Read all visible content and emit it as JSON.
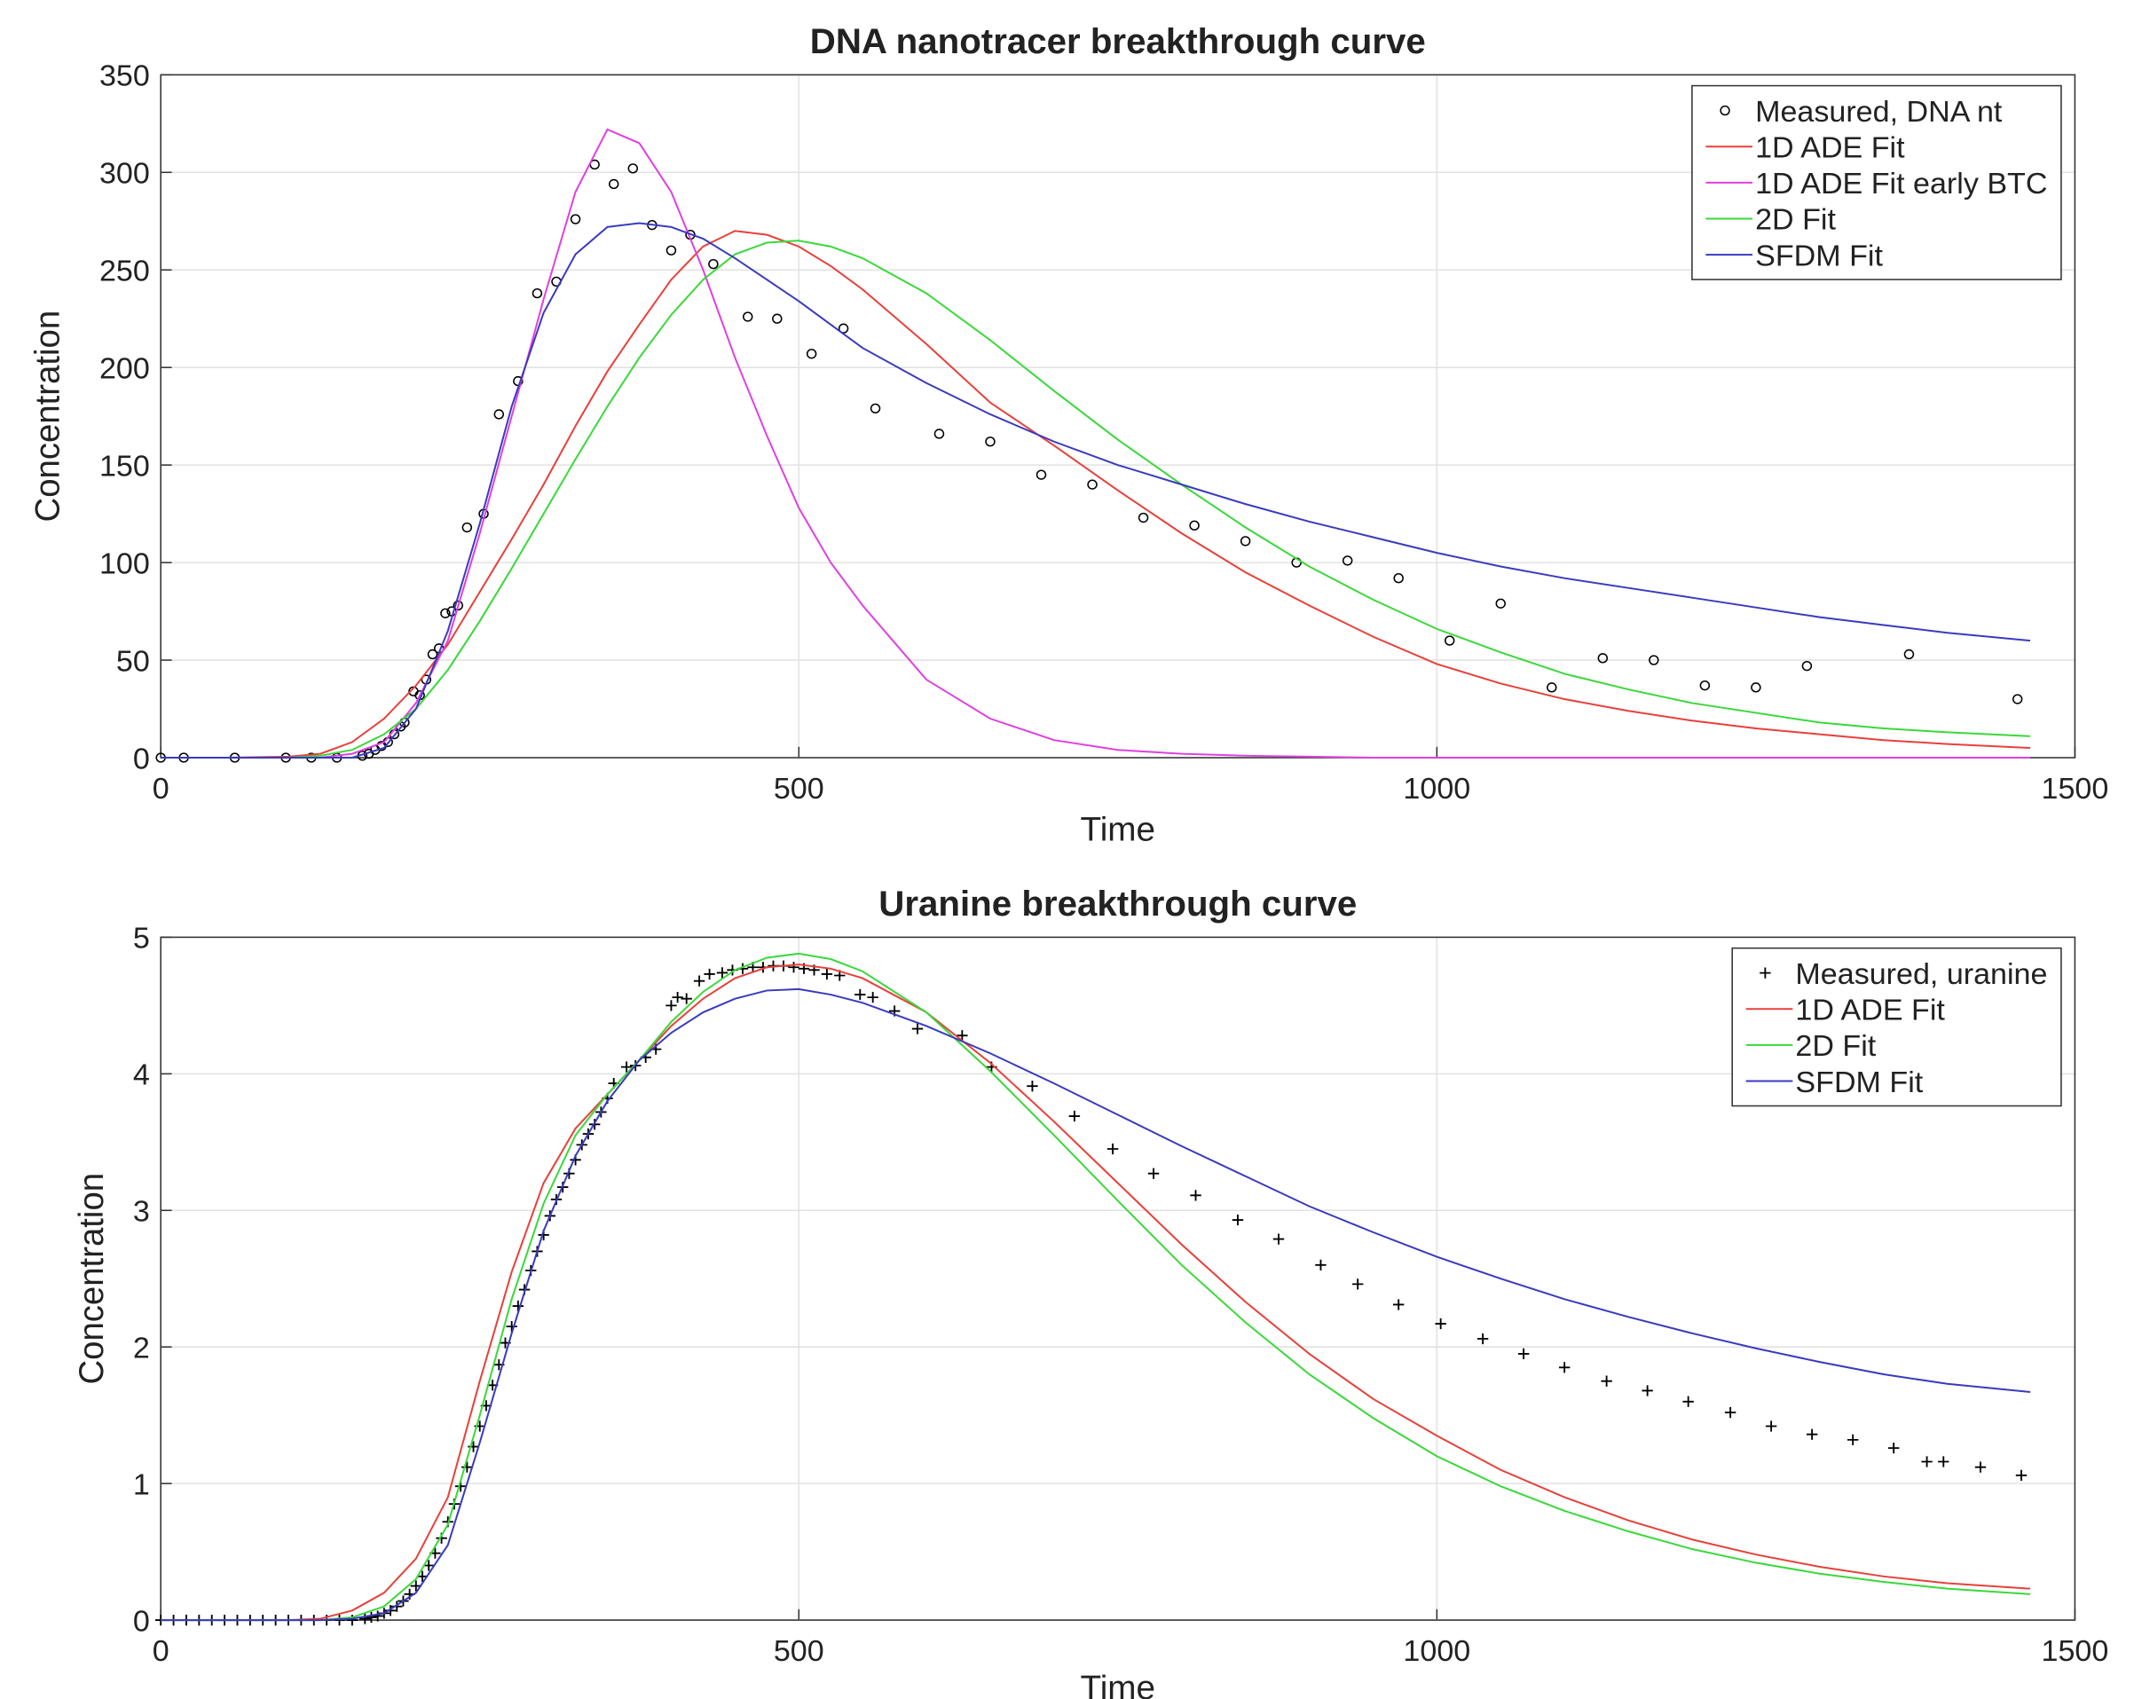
{
  "chart_data": [
    {
      "type": "line",
      "title": "DNA nanotracer breakthrough curve",
      "xlabel": "Time",
      "ylabel": "Concentration",
      "xlim": [
        0,
        1500
      ],
      "xticks": [
        0,
        500,
        1000,
        1500
      ],
      "ylim": [
        0,
        350
      ],
      "yticks": [
        0,
        50,
        100,
        150,
        200,
        250,
        300,
        350
      ],
      "grid": true,
      "legend": "upper right",
      "series": [
        {
          "name": "Measured, DNA nt",
          "mode": "markers",
          "marker": "circle",
          "color": "#000000",
          "x": [
            0,
            18,
            58,
            98,
            118,
            138,
            158,
            163,
            168,
            173,
            178,
            183,
            188,
            191,
            198,
            203,
            208,
            213,
            218,
            223,
            228,
            233,
            240,
            253,
            265,
            280,
            295,
            310,
            325,
            340,
            355,
            370,
            385,
            400,
            415,
            433,
            460,
            483,
            510,
            535,
            560,
            610,
            650,
            690,
            730,
            770,
            810,
            850,
            890,
            930,
            970,
            1010,
            1050,
            1090,
            1130,
            1170,
            1210,
            1250,
            1290,
            1370,
            1455
          ],
          "values": [
            0,
            0,
            0,
            0,
            0,
            0,
            1,
            2,
            4,
            6,
            8,
            12,
            16,
            18,
            34,
            32,
            40,
            53,
            56,
            74,
            75,
            78,
            118,
            125,
            176,
            193,
            238,
            244,
            276,
            304,
            294,
            302,
            273,
            260,
            268,
            253,
            226,
            225,
            207,
            220,
            179,
            166,
            162,
            145,
            140,
            123,
            119,
            111,
            100,
            101,
            92,
            60,
            79,
            36,
            51,
            50,
            37,
            36,
            47,
            53,
            30
          ]
        },
        {
          "name": "1D ADE Fit",
          "mode": "lines",
          "color": "#e8403a",
          "x": [
            0,
            50,
            100,
            125,
            150,
            175,
            200,
            225,
            250,
            275,
            300,
            325,
            350,
            375,
            400,
            425,
            450,
            475,
            500,
            525,
            550,
            600,
            650,
            700,
            750,
            800,
            850,
            900,
            950,
            1000,
            1050,
            1100,
            1150,
            1200,
            1250,
            1300,
            1350,
            1400,
            1465
          ],
          "values": [
            0,
            0,
            0.5,
            2,
            8,
            20,
            37,
            58,
            85,
            112,
            140,
            170,
            198,
            222,
            245,
            262,
            270,
            268,
            262,
            252,
            240,
            212,
            182,
            160,
            137,
            115,
            95,
            78,
            62,
            48,
            38,
            30,
            24,
            19,
            15,
            12,
            9,
            7,
            5
          ]
        },
        {
          "name": "1D ADE Fit early BTC",
          "mode": "lines",
          "color": "#e040e0",
          "x": [
            0,
            50,
            100,
            125,
            150,
            175,
            200,
            225,
            250,
            275,
            300,
            325,
            350,
            375,
            400,
            425,
            450,
            475,
            500,
            525,
            550,
            600,
            650,
            700,
            750,
            800,
            850,
            900,
            950,
            1000,
            1050,
            1100,
            1150,
            1200,
            1250,
            1300,
            1350,
            1400,
            1465
          ],
          "values": [
            0,
            0,
            0,
            0,
            2,
            8,
            28,
            60,
            115,
            175,
            235,
            290,
            322,
            315,
            290,
            250,
            205,
            165,
            128,
            100,
            78,
            40,
            20,
            9,
            4,
            2,
            1,
            0.5,
            0,
            0,
            0,
            0,
            0,
            0,
            0,
            0,
            0,
            0,
            0
          ]
        },
        {
          "name": "2D Fit",
          "mode": "lines",
          "color": "#3ad83a",
          "x": [
            0,
            50,
            100,
            125,
            150,
            175,
            200,
            225,
            250,
            275,
            300,
            325,
            350,
            375,
            400,
            425,
            450,
            475,
            500,
            525,
            550,
            600,
            650,
            700,
            750,
            800,
            850,
            900,
            950,
            1000,
            1050,
            1100,
            1150,
            1200,
            1250,
            1300,
            1350,
            1400,
            1465
          ],
          "values": [
            0,
            0,
            0,
            1,
            4,
            12,
            25,
            45,
            70,
            97,
            125,
            153,
            180,
            205,
            227,
            245,
            258,
            264,
            265,
            262,
            256,
            238,
            214,
            188,
            163,
            140,
            118,
            98,
            81,
            66,
            54,
            43,
            35,
            28,
            23,
            18,
            15,
            13,
            11
          ]
        },
        {
          "name": "SFDM Fit",
          "mode": "lines",
          "color": "#3a3ac0",
          "x": [
            0,
            50,
            100,
            125,
            150,
            175,
            200,
            225,
            250,
            275,
            300,
            325,
            350,
            375,
            400,
            425,
            450,
            475,
            500,
            525,
            550,
            600,
            650,
            700,
            750,
            800,
            850,
            900,
            950,
            1000,
            1050,
            1100,
            1150,
            1200,
            1250,
            1300,
            1350,
            1400,
            1465
          ],
          "values": [
            0,
            0,
            0,
            0,
            0,
            5,
            25,
            65,
            120,
            180,
            228,
            258,
            272,
            274,
            272,
            266,
            256,
            245,
            234,
            222,
            210,
            192,
            176,
            162,
            150,
            140,
            130,
            121,
            113,
            105,
            98,
            92,
            87,
            82,
            77,
            72,
            68,
            64,
            60
          ]
        }
      ]
    },
    {
      "type": "line",
      "title": "Uranine breakthrough curve",
      "xlabel": "Time",
      "ylabel": "Concentration",
      "xlim": [
        0,
        1500
      ],
      "xticks": [
        0,
        500,
        1000,
        1500
      ],
      "ylim": [
        0,
        5
      ],
      "yticks": [
        0,
        1,
        2,
        3,
        4,
        5
      ],
      "grid": true,
      "legend": "upper right",
      "series": [
        {
          "name": "Measured, uranine",
          "mode": "markers",
          "marker": "plus",
          "color": "#000000",
          "x": [
            0,
            10,
            20,
            30,
            40,
            50,
            60,
            70,
            80,
            90,
            100,
            110,
            120,
            130,
            140,
            150,
            160,
            165,
            170,
            175,
            180,
            185,
            190,
            195,
            200,
            205,
            210,
            215,
            220,
            225,
            230,
            235,
            240,
            245,
            250,
            255,
            260,
            265,
            270,
            275,
            280,
            285,
            290,
            295,
            300,
            305,
            310,
            315,
            320,
            325,
            330,
            335,
            340,
            345,
            350,
            355,
            365,
            372,
            380,
            388,
            400,
            405,
            412,
            422,
            430,
            440,
            448,
            456,
            464,
            472,
            480,
            488,
            496,
            504,
            512,
            522,
            532,
            548,
            558,
            575,
            593,
            628,
            651,
            683,
            716,
            746,
            778,
            811,
            844,
            876,
            909,
            938,
            970,
            1003,
            1036,
            1068,
            1100,
            1133,
            1165,
            1197,
            1230,
            1262,
            1294,
            1326,
            1358,
            1384,
            1397,
            1426,
            1458
          ],
          "values": [
            0,
            0,
            0,
            0,
            0,
            0,
            0,
            0,
            0,
            0,
            0,
            0,
            0,
            0,
            0,
            0,
            0.01,
            0.02,
            0.03,
            0.05,
            0.07,
            0.1,
            0.14,
            0.19,
            0.25,
            0.32,
            0.4,
            0.49,
            0.6,
            0.72,
            0.85,
            0.98,
            1.12,
            1.27,
            1.42,
            1.57,
            1.72,
            1.87,
            2.03,
            2.15,
            2.3,
            2.42,
            2.56,
            2.7,
            2.82,
            2.96,
            3.08,
            3.17,
            3.27,
            3.37,
            3.48,
            3.56,
            3.63,
            3.72,
            3.82,
            3.93,
            4.05,
            4.06,
            4.12,
            4.18,
            4.5,
            4.56,
            4.55,
            4.68,
            4.73,
            4.74,
            4.76,
            4.77,
            4.78,
            4.78,
            4.79,
            4.79,
            4.78,
            4.77,
            4.76,
            4.73,
            4.72,
            4.58,
            4.56,
            4.46,
            4.33,
            4.28,
            4.05,
            3.91,
            3.69,
            3.45,
            3.27,
            3.11,
            2.93,
            2.79,
            2.6,
            2.46,
            2.31,
            2.17,
            2.06,
            1.95,
            1.85,
            1.75,
            1.68,
            1.6,
            1.52,
            1.42,
            1.36,
            1.32,
            1.26,
            1.16,
            1.16,
            1.12,
            1.06
          ]
        },
        {
          "name": "1D ADE Fit",
          "mode": "lines",
          "color": "#e8403a",
          "x": [
            0,
            50,
            100,
            125,
            150,
            175,
            200,
            225,
            250,
            275,
            300,
            325,
            350,
            375,
            400,
            425,
            450,
            475,
            500,
            525,
            550,
            600,
            650,
            700,
            750,
            800,
            850,
            900,
            950,
            1000,
            1050,
            1100,
            1150,
            1200,
            1250,
            1300,
            1350,
            1400,
            1465
          ],
          "values": [
            0,
            0,
            0,
            0.01,
            0.07,
            0.2,
            0.45,
            0.9,
            1.75,
            2.55,
            3.2,
            3.6,
            3.85,
            4.1,
            4.35,
            4.55,
            4.7,
            4.78,
            4.8,
            4.77,
            4.7,
            4.45,
            4.08,
            3.65,
            3.2,
            2.75,
            2.33,
            1.95,
            1.62,
            1.35,
            1.1,
            0.9,
            0.73,
            0.59,
            0.48,
            0.39,
            0.32,
            0.27,
            0.23
          ]
        },
        {
          "name": "2D Fit",
          "mode": "lines",
          "color": "#3ad83a",
          "x": [
            0,
            50,
            100,
            125,
            150,
            175,
            200,
            225,
            250,
            275,
            300,
            325,
            350,
            375,
            400,
            425,
            450,
            475,
            500,
            525,
            550,
            600,
            650,
            700,
            750,
            800,
            850,
            900,
            950,
            1000,
            1050,
            1100,
            1150,
            1200,
            1250,
            1300,
            1350,
            1400,
            1465
          ],
          "values": [
            0,
            0,
            0,
            0,
            0.02,
            0.1,
            0.3,
            0.7,
            1.5,
            2.35,
            3.05,
            3.55,
            3.85,
            4.1,
            4.38,
            4.6,
            4.76,
            4.85,
            4.88,
            4.84,
            4.75,
            4.45,
            4.02,
            3.55,
            3.07,
            2.6,
            2.18,
            1.8,
            1.48,
            1.2,
            0.98,
            0.8,
            0.65,
            0.52,
            0.42,
            0.34,
            0.28,
            0.23,
            0.19
          ]
        },
        {
          "name": "SFDM Fit",
          "mode": "lines",
          "color": "#3a3ac0",
          "x": [
            0,
            50,
            100,
            125,
            150,
            175,
            200,
            225,
            250,
            275,
            300,
            325,
            350,
            375,
            400,
            425,
            450,
            475,
            500,
            525,
            550,
            600,
            650,
            700,
            750,
            800,
            850,
            900,
            950,
            1000,
            1050,
            1100,
            1150,
            1200,
            1250,
            1300,
            1350,
            1400,
            1465
          ],
          "values": [
            0,
            0,
            0,
            0,
            0.01,
            0.05,
            0.2,
            0.55,
            1.3,
            2.1,
            2.85,
            3.4,
            3.8,
            4.1,
            4.3,
            4.45,
            4.55,
            4.61,
            4.62,
            4.58,
            4.52,
            4.35,
            4.15,
            3.93,
            3.7,
            3.47,
            3.25,
            3.03,
            2.84,
            2.66,
            2.5,
            2.35,
            2.22,
            2.1,
            1.99,
            1.89,
            1.8,
            1.73,
            1.67
          ]
        }
      ]
    }
  ]
}
